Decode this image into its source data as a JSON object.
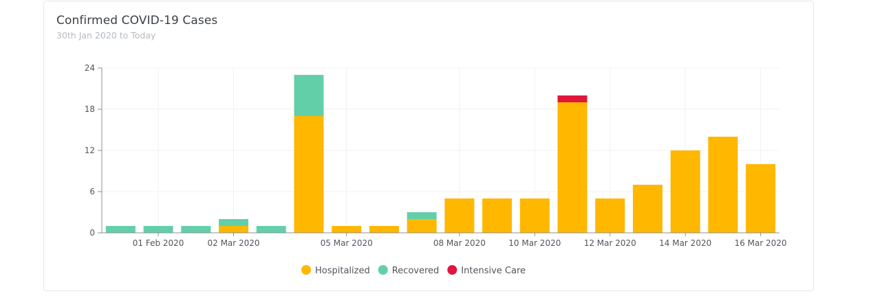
{
  "card": {
    "title": "Confirmed COVID-19 Cases",
    "subtitle": "30th Jan 2020 to Today"
  },
  "chart_data": {
    "type": "bar",
    "stacked": true,
    "title": "Confirmed COVID-19 Cases",
    "subtitle": "30th Jan 2020 to Today",
    "xlabel": "",
    "ylabel": "",
    "ylim": [
      0,
      24
    ],
    "y_ticks": [
      0,
      6,
      12,
      18,
      24
    ],
    "grid": true,
    "legend_position": "bottom-center",
    "x_tick_labels": [
      "01 Feb 2020",
      "02 Mar 2020",
      "05 Mar 2020",
      "08 Mar 2020",
      "10 Mar 2020",
      "12 Mar 2020",
      "14 Mar 2020",
      "16 Mar 2020"
    ],
    "bar_count": 18,
    "x_tick_bar_positions": [
      1.5,
      3.5,
      6.5,
      9.5,
      11.5,
      13.5,
      15.5,
      17.5
    ],
    "series": [
      {
        "name": "Hospitalized",
        "color": "#ffb700",
        "values": [
          0,
          0,
          0,
          1,
          0,
          17,
          1,
          1,
          2,
          5,
          5,
          5,
          19,
          5,
          7,
          12,
          14,
          10
        ]
      },
      {
        "name": "Recovered",
        "color": "#63cfa9",
        "values": [
          1,
          1,
          1,
          1,
          1,
          6,
          0,
          0,
          1,
          0,
          0,
          0,
          0,
          0,
          0,
          0,
          0,
          0
        ]
      },
      {
        "name": "Intensive Care",
        "color": "#e0173c",
        "values": [
          0,
          0,
          0,
          0,
          0,
          0,
          0,
          0,
          0,
          0,
          0,
          0,
          1,
          0,
          0,
          0,
          0,
          0
        ]
      }
    ]
  }
}
